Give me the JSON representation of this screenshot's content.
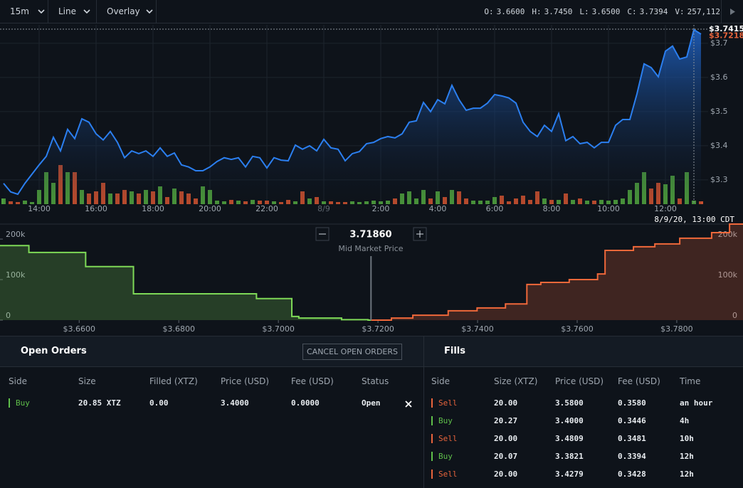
{
  "toolbar": {
    "interval": "15m",
    "style": "Line",
    "overlay": "Overlay"
  },
  "ohlc": [
    {
      "key": "O:",
      "value": "3.6600"
    },
    {
      "key": "H:",
      "value": "3.7450"
    },
    {
      "key": "L:",
      "value": "3.6500"
    },
    {
      "key": "C:",
      "value": "3.7394"
    },
    {
      "key": "V:",
      "value": "257,112"
    }
  ],
  "price_chart": {
    "type": "line",
    "categories": [
      null,
      null,
      null,
      null,
      null,
      "14:00",
      null,
      null,
      null,
      null,
      null,
      null,
      null,
      "16:00",
      null,
      null,
      null,
      null,
      null,
      null,
      null,
      "18:00",
      null,
      null,
      null,
      null,
      null,
      null,
      null,
      "20:00",
      null,
      null,
      null,
      null,
      null,
      null,
      null,
      "22:00",
      null,
      null,
      null,
      null,
      null,
      null,
      null,
      "8/9",
      null,
      null,
      null,
      null,
      null,
      null,
      null,
      "2:00",
      null,
      null,
      null,
      null,
      null,
      null,
      null,
      "4:00",
      null,
      null,
      null,
      null,
      null,
      null,
      null,
      "6:00",
      null,
      null,
      null,
      null,
      null,
      null,
      null,
      "8:00",
      null,
      null,
      null,
      null,
      null,
      null,
      null,
      "10:00",
      null,
      null,
      null,
      null,
      null,
      null,
      null,
      "12:00",
      null,
      null,
      null,
      null,
      null
    ],
    "values": [
      3.29,
      3.265,
      3.258,
      3.29,
      3.317,
      3.344,
      3.369,
      3.425,
      3.385,
      3.448,
      3.421,
      3.479,
      3.469,
      3.435,
      3.417,
      3.442,
      3.41,
      3.365,
      3.385,
      3.377,
      3.385,
      3.369,
      3.394,
      3.369,
      3.379,
      3.344,
      3.338,
      3.327,
      3.327,
      3.338,
      3.354,
      3.365,
      3.36,
      3.365,
      3.338,
      3.369,
      3.365,
      3.335,
      3.365,
      3.358,
      3.356,
      3.402,
      3.39,
      3.4,
      3.385,
      3.419,
      3.394,
      3.39,
      3.356,
      3.377,
      3.383,
      3.406,
      3.41,
      3.421,
      3.427,
      3.423,
      3.435,
      3.469,
      3.473,
      3.527,
      3.5,
      3.535,
      3.523,
      3.577,
      3.535,
      3.504,
      3.51,
      3.51,
      3.525,
      3.55,
      3.546,
      3.54,
      3.525,
      3.469,
      3.442,
      3.427,
      3.46,
      3.442,
      3.494,
      3.415,
      3.427,
      3.406,
      3.41,
      3.394,
      3.41,
      3.41,
      3.46,
      3.477,
      3.477,
      3.552,
      3.64,
      3.629,
      3.602,
      3.677,
      3.692,
      3.654,
      3.66,
      3.74,
      3.727
    ],
    "color": "#2b7ff0",
    "ylim": [
      3.229,
      3.754
    ],
    "yticks": [
      {
        "value": 3.3,
        "label": "$3.3"
      },
      {
        "value": 3.4,
        "label": "$3.4"
      },
      {
        "value": 3.5,
        "label": "$3.5"
      },
      {
        "value": 3.6,
        "label": "$3.6"
      },
      {
        "value": 3.7,
        "label": "$3.7"
      }
    ],
    "grid": true,
    "volume": {
      "values": [
        8,
        4,
        3,
        5,
        3,
        20,
        45,
        30,
        55,
        45,
        45,
        20,
        15,
        18,
        30,
        15,
        15,
        20,
        18,
        15,
        20,
        18,
        25,
        10,
        22,
        18,
        15,
        8,
        25,
        20,
        5,
        4,
        6,
        5,
        4,
        6,
        5,
        5,
        4,
        3,
        6,
        4,
        18,
        8,
        10,
        4,
        4,
        3,
        3,
        4,
        3,
        4,
        5,
        4,
        5,
        8,
        15,
        18,
        8,
        20,
        8,
        18,
        10,
        20,
        18,
        8,
        5,
        5,
        5,
        10,
        12,
        4,
        8,
        12,
        6,
        18,
        8,
        6,
        6,
        15,
        6,
        8,
        5,
        5,
        6,
        5,
        6,
        8,
        20,
        30,
        45,
        22,
        30,
        28,
        40,
        8,
        45,
        5,
        4
      ],
      "up_color": "#4e9f3d",
      "down_color": "#c9502f"
    },
    "high_label": {
      "value": 3.7415,
      "label": "$3.7415"
    },
    "last_label": {
      "value": 3.7218,
      "label": "$3.7218"
    },
    "crosshair_label": "8/9/20, 13:00 CDT"
  },
  "depth_chart": {
    "type": "depth",
    "mid_price": {
      "value": 3.7186,
      "label": "3.71860"
    },
    "mid_label": "Mid Market Price",
    "xlim": [
      3.6441,
      3.7933
    ],
    "xticks": [
      {
        "value": 3.66,
        "label": "$3.6600"
      },
      {
        "value": 3.68,
        "label": "$3.6800"
      },
      {
        "value": 3.7,
        "label": "$3.7000"
      },
      {
        "value": 3.72,
        "label": "$3.7200"
      },
      {
        "value": 3.74,
        "label": "$3.7400"
      },
      {
        "value": 3.76,
        "label": "$3.7600"
      },
      {
        "value": 3.78,
        "label": "$3.7800"
      }
    ],
    "ylim": [
      0,
      237000
    ],
    "yticks": [
      0,
      {
        "value": 100000,
        "label": "100k"
      },
      {
        "value": 200000,
        "label": "200k"
      }
    ],
    "bids": {
      "color": "#7ed957",
      "prices": [
        3.718,
        3.7127,
        3.7041,
        3.7027,
        3.6956,
        3.6709,
        3.6613,
        3.6499
      ],
      "depths": [
        1000,
        5000,
        9000,
        53000,
        65000,
        132000,
        167000,
        184000
      ]
    },
    "asks": {
      "color": "#f0683a",
      "prices": [
        3.7227,
        3.727,
        3.7341,
        3.7399,
        3.7456,
        3.7499,
        3.7527,
        3.7584,
        3.7641,
        3.7656,
        3.7713,
        3.7756,
        3.7806,
        3.787,
        3.7906
      ],
      "depths": [
        5000,
        12000,
        23000,
        30000,
        40000,
        88000,
        93000,
        100000,
        114000,
        172000,
        181000,
        188000,
        202000,
        216000,
        237000
      ]
    }
  },
  "side_colors": {
    "Buy": "#5fbf4a",
    "Sell": "#e8643c"
  },
  "open_orders": {
    "title": "Open Orders",
    "button": "CANCEL OPEN ORDERS",
    "columns": [
      "Side",
      "Size",
      "Filled (XTZ)",
      "Price (USD)",
      "Fee (USD)",
      "Status"
    ],
    "rows": [
      [
        "Buy",
        "20.85 XTZ",
        "0.00",
        "3.4000",
        "0.0000",
        "Open"
      ]
    ]
  },
  "fills": {
    "title": "Fills",
    "columns": [
      "Side",
      "Size (XTZ)",
      "Price (USD)",
      "Fee (USD)",
      "Time"
    ],
    "rows": [
      [
        "Sell",
        "20.00",
        "3.5800",
        "0.3580",
        "an hour"
      ],
      [
        "Buy",
        "20.27",
        "3.4000",
        "0.3446",
        "4h"
      ],
      [
        "Sell",
        "20.00",
        "3.4809",
        "0.3481",
        "10h"
      ],
      [
        "Buy",
        "20.07",
        "3.3821",
        "0.3394",
        "12h"
      ],
      [
        "Sell",
        "20.00",
        "3.4279",
        "0.3428",
        "12h"
      ]
    ]
  }
}
